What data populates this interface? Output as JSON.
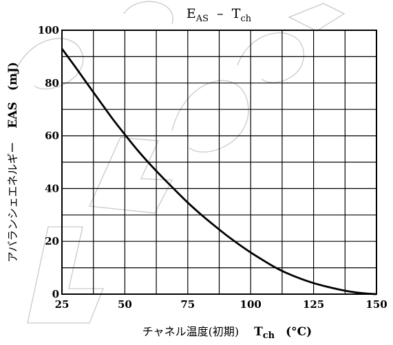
{
  "chart_data": {
    "type": "line",
    "title": {
      "main": "E",
      "main_sub": "AS",
      "sep": "  –  ",
      "sym": "T",
      "sym_sub": "ch"
    },
    "xlabel": {
      "text": "チャネル温度(初期)",
      "symbol": "T",
      "symbol_sub": "ch",
      "unit": "(°C)"
    },
    "ylabel": {
      "text": "アバランシェエネルギー",
      "symbol": "EAS",
      "unit": "(mJ)"
    },
    "xlim": [
      25,
      150
    ],
    "ylim": [
      0,
      100
    ],
    "x_ticks": [
      25,
      50,
      75,
      100,
      125,
      150
    ],
    "y_ticks": [
      0,
      20,
      40,
      60,
      80,
      100
    ],
    "x_grid_step": 12.5,
    "y_grid_step": 10,
    "grid": true,
    "series": [
      {
        "x": [
          25,
          30,
          35,
          40,
          45,
          50,
          55,
          60,
          65,
          70,
          75,
          80,
          85,
          90,
          95,
          100,
          105,
          110,
          115,
          120,
          125,
          130,
          135,
          140,
          145,
          150
        ],
        "y": [
          93,
          86.5,
          79.8,
          73.2,
          66.6,
          60.5,
          54.6,
          49.2,
          44.2,
          39.4,
          34.7,
          30.4,
          26.4,
          22.6,
          19.1,
          15.8,
          12.8,
          10.0,
          7.7,
          5.8,
          4.2,
          2.9,
          1.8,
          0.9,
          0.3,
          0
        ]
      }
    ],
    "colors": {
      "line": "#000000",
      "grid": "#000000",
      "background": "#ffffff",
      "watermark": "#c9c9c9"
    }
  }
}
